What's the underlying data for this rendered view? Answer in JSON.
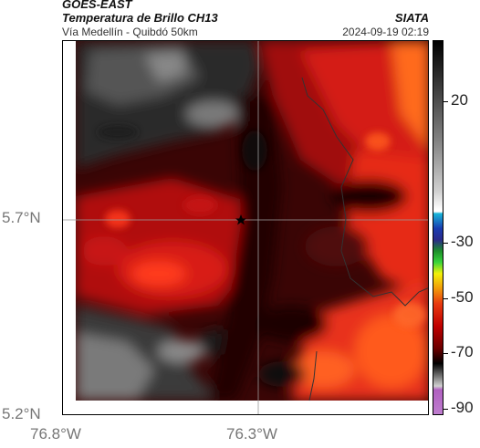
{
  "header": {
    "title1": "GOES-EAST",
    "title2": "Temperatura de Brillo CH13",
    "subtitle": "Vía Medellín - Quibdó 50km",
    "org": "SIATA",
    "timestamp": "2024-09-19 02:19"
  },
  "axes": {
    "y_ticks": [
      "5.7°N",
      "5.2°N"
    ],
    "x_ticks": [
      "76.8°W",
      "76.3°W"
    ]
  },
  "colorbar": {
    "labels": [
      "20",
      "-30",
      "-50",
      "-70",
      "-90"
    ],
    "colors": [
      "#000000",
      "#3a3a3a",
      "#777777",
      "#b5b5b5",
      "#e8e8e8",
      "#ffffff",
      "#19b6d9",
      "#1a3bb0",
      "#2a2a8a",
      "#1c8f2a",
      "#39d43a",
      "#f2f20a",
      "#f29a0a",
      "#e83a10",
      "#c00000",
      "#6a0000",
      "#000000",
      "#8a8a8a",
      "#d0d0d0",
      "#b060c0",
      "#c080d0"
    ]
  },
  "map_info": {
    "marker": "star-marker",
    "colors": {
      "dark_red": "#5a0000",
      "red": "#c81414",
      "bright_red": "#ff3a14",
      "orange": "#ff6a1a",
      "black": "#0a0a0a",
      "gray": "#888888",
      "light_gray": "#b8b8b8"
    }
  }
}
